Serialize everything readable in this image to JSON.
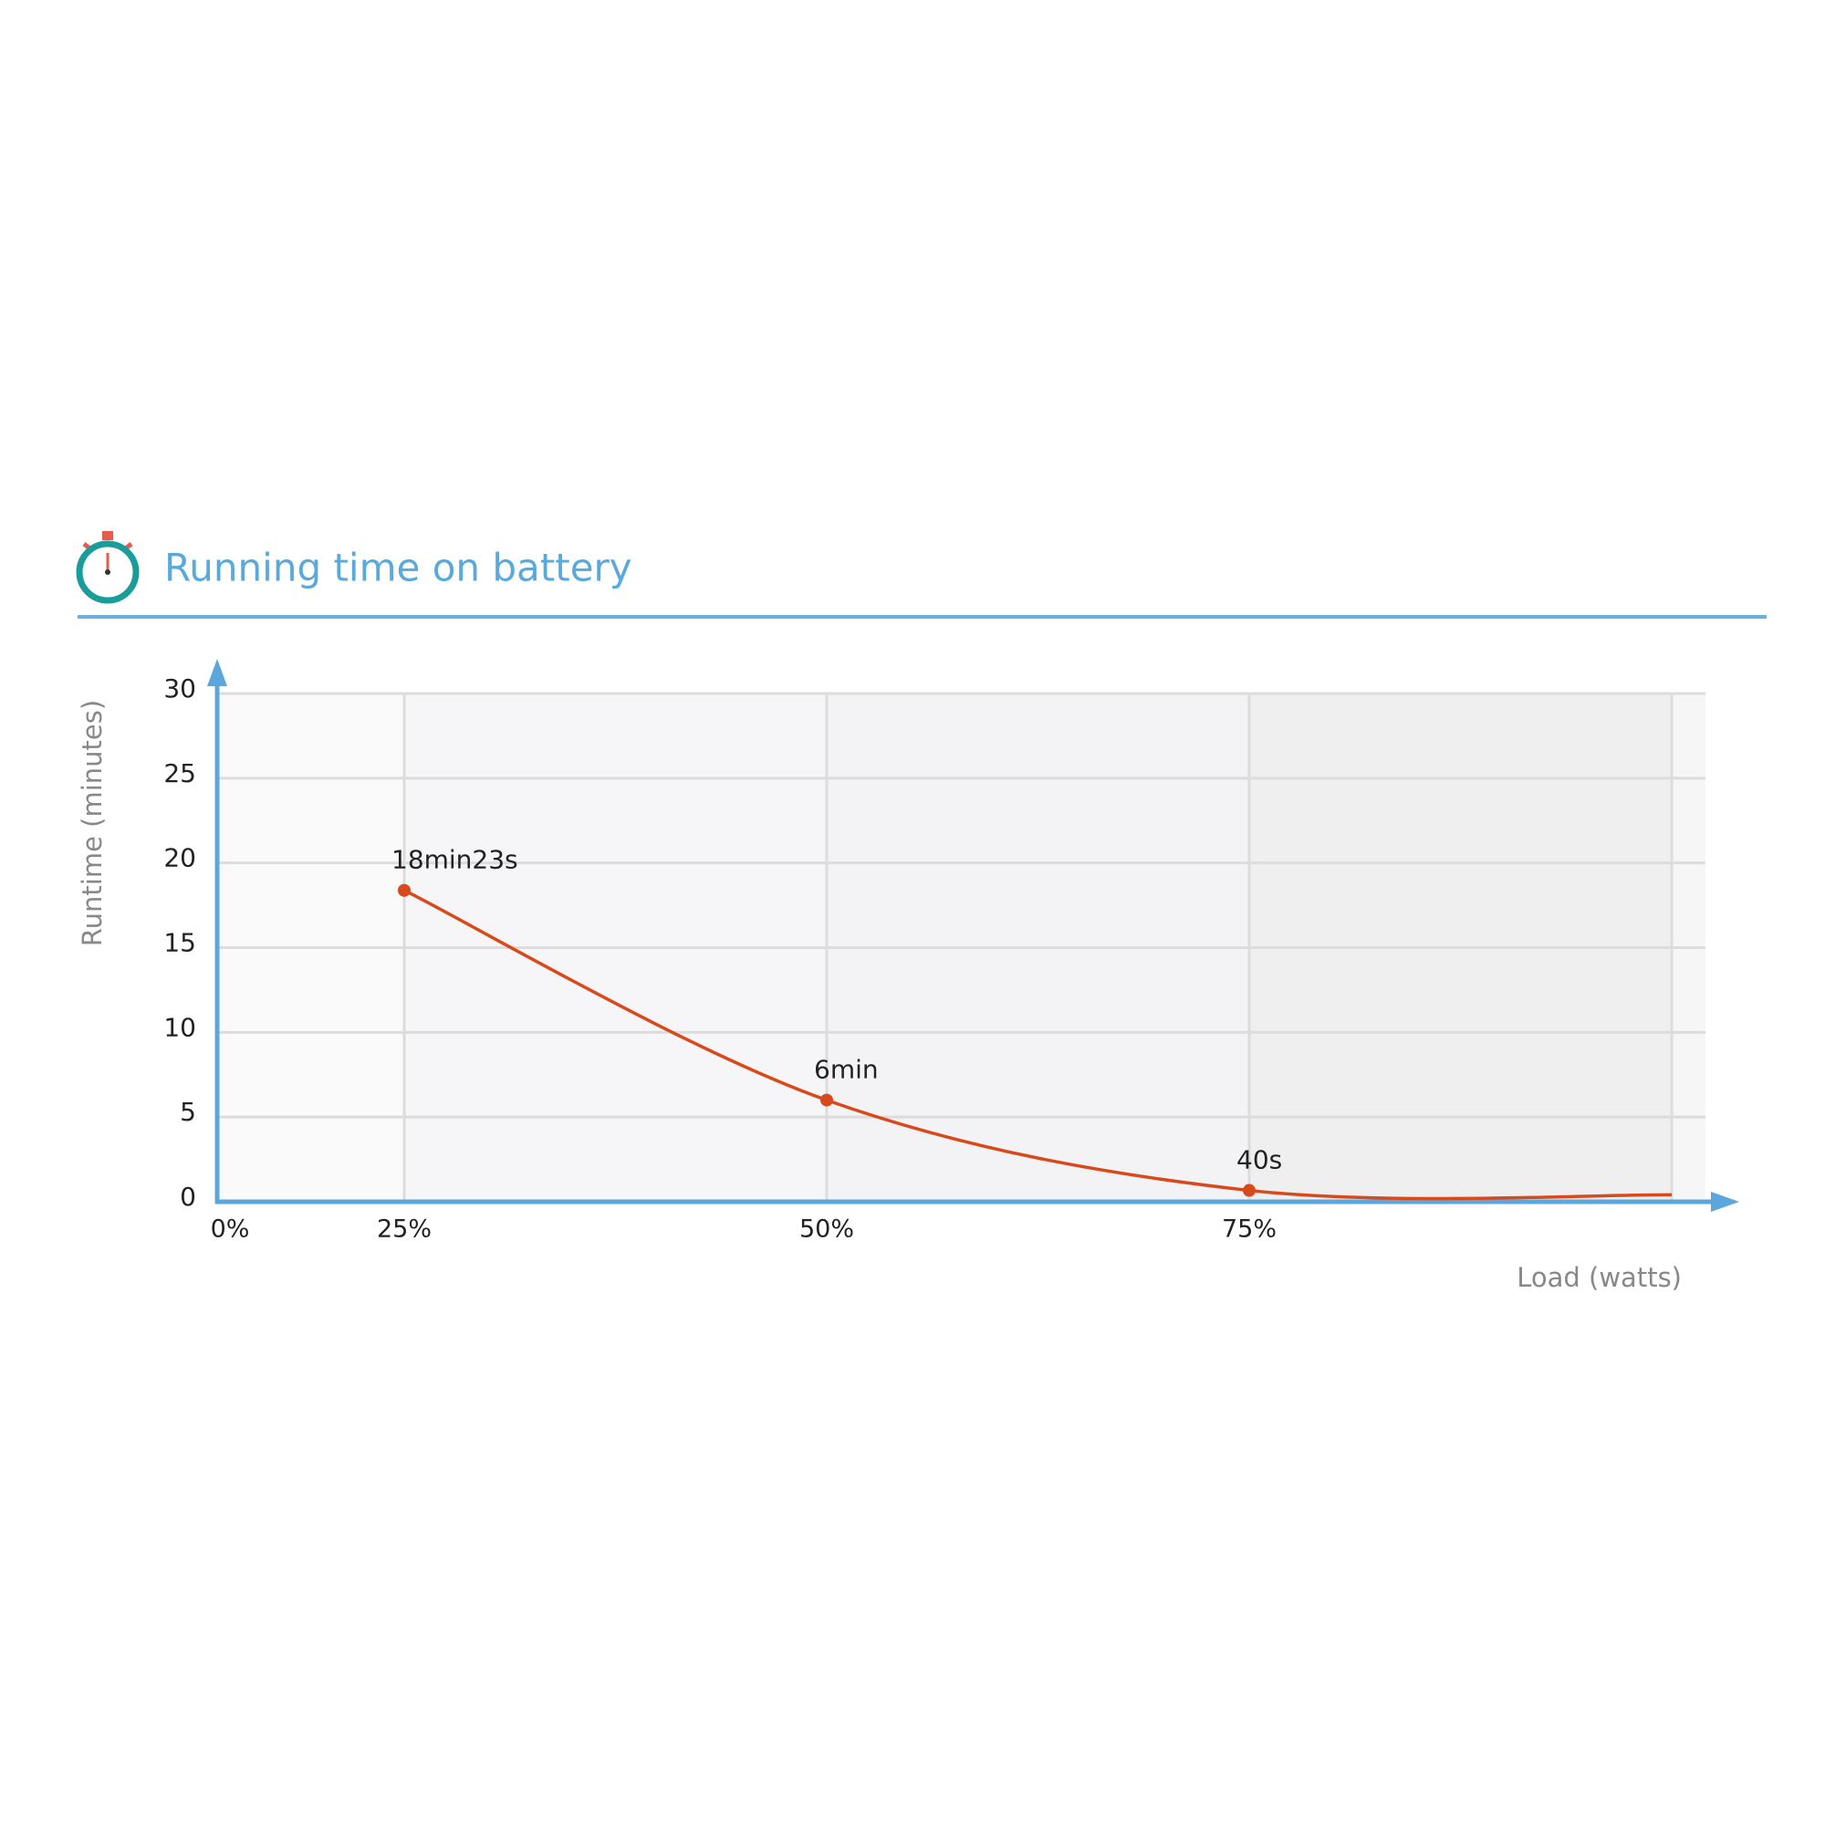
{
  "chart_data": {
    "type": "line",
    "title": "Running time on battery",
    "ylabel": "Runtime (minutes)",
    "xlabel": "Load (watts)",
    "categories": [
      "0%",
      "25%",
      "50%",
      "75%",
      null
    ],
    "series": [
      {
        "color": "#d84a1b",
        "values": [
          null,
          18.38,
          6,
          0.67,
          0.41
        ],
        "value_labels": [
          null,
          "18min23s",
          "6min",
          "40s",
          null
        ]
      }
    ],
    "ylim": [
      0,
      30
    ],
    "yticks": [
      0,
      5,
      10,
      15,
      20,
      25,
      30
    ],
    "grid": true
  }
}
